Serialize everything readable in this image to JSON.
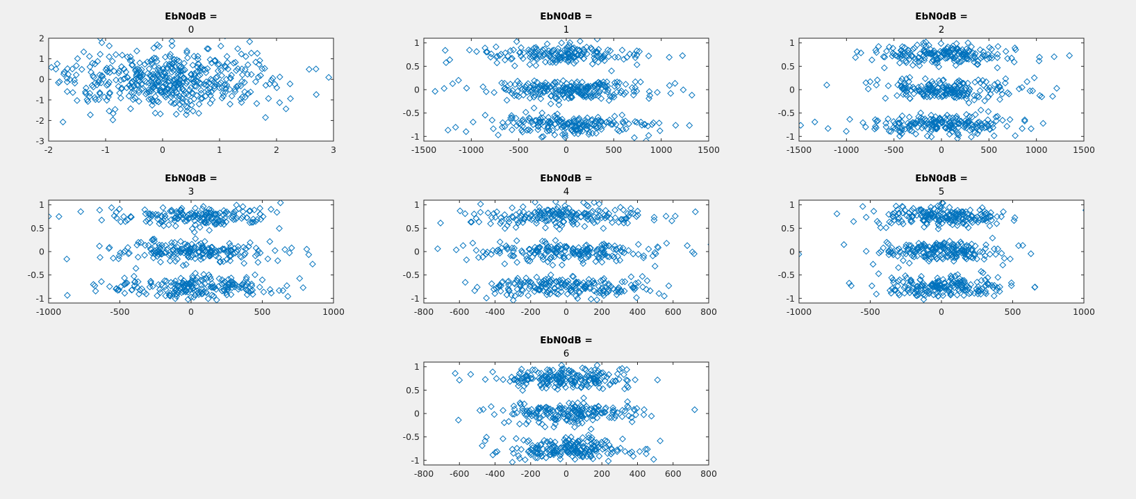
{
  "colors": {
    "figure_background": "#f0f0f0",
    "axes_background": "#ffffff",
    "marker": "#0072bd",
    "axis": "#262626"
  },
  "chart_data": [
    {
      "type": "scatter",
      "marker": "diamond",
      "title_line1": "EbN0dB =",
      "title_line2": "0",
      "xlim": [
        -2,
        3
      ],
      "ylim": [
        -3,
        2
      ],
      "xticks": [
        "-2",
        "-1",
        "0",
        "1",
        "2",
        "3"
      ],
      "yticks": [
        "-3",
        "-2",
        "-1",
        "0",
        "1",
        "2"
      ],
      "shape": "blob",
      "x_spread": 0.75,
      "y_spread": 0.75,
      "n_points": 500,
      "seed": 11
    },
    {
      "type": "scatter",
      "marker": "diamond",
      "title_line1": "EbN0dB =",
      "title_line2": "1",
      "xlim": [
        -1500,
        1500
      ],
      "ylim": [
        -1.1,
        1.1
      ],
      "xticks": [
        "-1500",
        "-1000",
        "-500",
        "0",
        "500",
        "1000",
        "1500"
      ],
      "yticks": [
        "-1",
        "-0.5",
        "0",
        "0.5",
        "1"
      ],
      "shape": "bands",
      "bands": [
        0.75,
        0.0,
        -0.75
      ],
      "x_spread": 380,
      "y_spread": 0.11,
      "n_points": 600,
      "seed": 23
    },
    {
      "type": "scatter",
      "marker": "diamond",
      "title_line1": "EbN0dB =",
      "title_line2": "2",
      "xlim": [
        -1500,
        1500
      ],
      "ylim": [
        -1.1,
        1.1
      ],
      "xticks": [
        "-1500",
        "-1000",
        "-500",
        "0",
        "500",
        "1000",
        "1500"
      ],
      "yticks": [
        "-1",
        "-0.5",
        "0",
        "0.5",
        "1"
      ],
      "shape": "bands",
      "bands": [
        0.75,
        0.0,
        -0.75
      ],
      "x_spread": 340,
      "y_spread": 0.11,
      "n_points": 600,
      "seed": 37
    },
    {
      "type": "scatter",
      "marker": "diamond",
      "title_line1": "EbN0dB =",
      "title_line2": "3",
      "xlim": [
        -1000,
        1000
      ],
      "ylim": [
        -1.1,
        1.1
      ],
      "xticks": [
        "-1000",
        "-500",
        "0",
        "500",
        "1000"
      ],
      "yticks": [
        "-1",
        "-0.5",
        "0",
        "0.5",
        "1"
      ],
      "shape": "bands",
      "bands": [
        0.75,
        0.0,
        -0.75
      ],
      "x_spread": 270,
      "y_spread": 0.11,
      "n_points": 600,
      "seed": 41
    },
    {
      "type": "scatter",
      "marker": "diamond",
      "title_line1": "EbN0dB =",
      "title_line2": "4",
      "xlim": [
        -800,
        800
      ],
      "ylim": [
        -1.1,
        1.1
      ],
      "xticks": [
        "-800",
        "-600",
        "-400",
        "-200",
        "0",
        "200",
        "400",
        "600",
        "800"
      ],
      "yticks": [
        "-1",
        "-0.5",
        "0",
        "0.5",
        "1"
      ],
      "shape": "bands",
      "bands": [
        0.75,
        0.0,
        -0.75
      ],
      "x_spread": 230,
      "y_spread": 0.11,
      "n_points": 600,
      "seed": 53
    },
    {
      "type": "scatter",
      "marker": "diamond",
      "title_line1": "EbN0dB =",
      "title_line2": "5",
      "xlim": [
        -1000,
        1000
      ],
      "ylim": [
        -1.1,
        1.1
      ],
      "xticks": [
        "-1000",
        "-500",
        "0",
        "500",
        "1000"
      ],
      "yticks": [
        "-1",
        "-0.5",
        "0",
        "0.5",
        "1"
      ],
      "shape": "bands",
      "bands": [
        0.75,
        0.0,
        -0.75
      ],
      "x_spread": 190,
      "y_spread": 0.11,
      "n_points": 600,
      "seed": 67
    },
    {
      "type": "scatter",
      "marker": "diamond",
      "title_line1": "EbN0dB =",
      "title_line2": "6",
      "xlim": [
        -800,
        800
      ],
      "ylim": [
        -1.1,
        1.1
      ],
      "xticks": [
        "-800",
        "-600",
        "-400",
        "-200",
        "0",
        "200",
        "400",
        "600",
        "800"
      ],
      "yticks": [
        "-1",
        "-0.5",
        "0",
        "0.5",
        "1"
      ],
      "shape": "bands",
      "bands": [
        0.75,
        0.0,
        -0.75
      ],
      "x_spread": 170,
      "y_spread": 0.11,
      "n_points": 600,
      "seed": 79
    }
  ]
}
